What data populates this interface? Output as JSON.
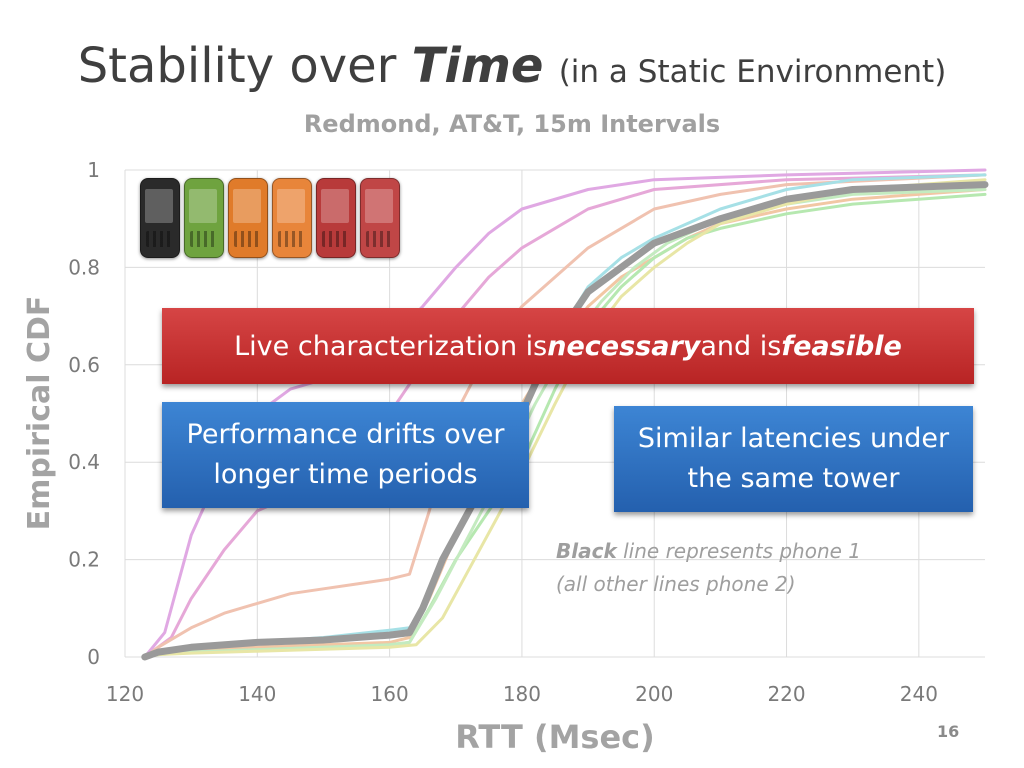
{
  "slide": {
    "title_main": "Stability over ",
    "title_emph": "Time",
    "title_paren": "(in a Static Environment)",
    "subtitle": "Redmond, AT&T, 15m Intervals",
    "banner": {
      "prefix": "Live characterization is ",
      "emph1": "necessary",
      "middle": " and is ",
      "emph2": "feasible"
    },
    "box_left": {
      "line1": "Performance drifts over",
      "line2": "longer time periods"
    },
    "box_right": {
      "line1": "Similar latencies under",
      "line2": "the same tower"
    },
    "note": {
      "bold": "Black",
      "line1_rest": " line represents phone 1",
      "line2": "(all other lines phone 2)"
    },
    "page_number": "16",
    "phone_colors": [
      "#2a2a2a",
      "#6fa33f",
      "#e07b2a",
      "#e8853a",
      "#b83a3a",
      "#c04646"
    ]
  },
  "chart_data": {
    "type": "line",
    "title": "",
    "xlabel": "RTT (Msec)",
    "ylabel": "Empirical CDF",
    "xlim": [
      120,
      250
    ],
    "ylim": [
      0,
      1
    ],
    "x_ticks": [
      120,
      140,
      160,
      180,
      200,
      220,
      240
    ],
    "y_ticks": [
      0,
      0.2,
      0.4,
      0.6,
      0.8,
      1
    ],
    "y_tick_labels": [
      "0",
      "0.2",
      "0.4",
      "0.6",
      "0.8",
      "1"
    ],
    "grid": true,
    "series": [
      {
        "color": "#9a9a9a",
        "width": 7,
        "points": [
          [
            123,
            0
          ],
          [
            125,
            0.01
          ],
          [
            130,
            0.02
          ],
          [
            140,
            0.03
          ],
          [
            150,
            0.035
          ],
          [
            160,
            0.045
          ],
          [
            163,
            0.05
          ],
          [
            165,
            0.1
          ],
          [
            168,
            0.2
          ],
          [
            172,
            0.3
          ],
          [
            176,
            0.4
          ],
          [
            180,
            0.5
          ],
          [
            185,
            0.65
          ],
          [
            190,
            0.75
          ],
          [
            195,
            0.8
          ],
          [
            200,
            0.85
          ],
          [
            210,
            0.9
          ],
          [
            220,
            0.94
          ],
          [
            230,
            0.96
          ],
          [
            250,
            0.97
          ]
        ]
      },
      {
        "color": "#e0a8e3",
        "width": 3,
        "points": [
          [
            123,
            0
          ],
          [
            126,
            0.05
          ],
          [
            128,
            0.15
          ],
          [
            130,
            0.25
          ],
          [
            135,
            0.4
          ],
          [
            140,
            0.5
          ],
          [
            145,
            0.55
          ],
          [
            150,
            0.57
          ],
          [
            155,
            0.6
          ],
          [
            160,
            0.65
          ],
          [
            165,
            0.72
          ],
          [
            170,
            0.8
          ],
          [
            175,
            0.87
          ],
          [
            180,
            0.92
          ],
          [
            190,
            0.96
          ],
          [
            200,
            0.98
          ],
          [
            220,
            0.99
          ],
          [
            250,
            1
          ]
        ]
      },
      {
        "color": "#e6a8d8",
        "width": 3,
        "points": [
          [
            123,
            0
          ],
          [
            127,
            0.04
          ],
          [
            130,
            0.12
          ],
          [
            135,
            0.22
          ],
          [
            140,
            0.3
          ],
          [
            145,
            0.33
          ],
          [
            150,
            0.38
          ],
          [
            155,
            0.43
          ],
          [
            160,
            0.5
          ],
          [
            165,
            0.6
          ],
          [
            170,
            0.7
          ],
          [
            175,
            0.78
          ],
          [
            180,
            0.84
          ],
          [
            185,
            0.88
          ],
          [
            190,
            0.92
          ],
          [
            200,
            0.96
          ],
          [
            220,
            0.98
          ],
          [
            250,
            0.99
          ]
        ]
      },
      {
        "color": "#f0c2b0",
        "width": 3,
        "points": [
          [
            123,
            0
          ],
          [
            125,
            0.02
          ],
          [
            130,
            0.06
          ],
          [
            135,
            0.09
          ],
          [
            140,
            0.11
          ],
          [
            145,
            0.13
          ],
          [
            150,
            0.14
          ],
          [
            155,
            0.15
          ],
          [
            160,
            0.16
          ],
          [
            163,
            0.17
          ],
          [
            166,
            0.3
          ],
          [
            170,
            0.5
          ],
          [
            175,
            0.63
          ],
          [
            180,
            0.72
          ],
          [
            185,
            0.78
          ],
          [
            190,
            0.84
          ],
          [
            195,
            0.88
          ],
          [
            200,
            0.92
          ],
          [
            210,
            0.95
          ],
          [
            220,
            0.97
          ],
          [
            250,
            0.99
          ]
        ]
      },
      {
        "color": "#f2c7a4",
        "width": 3,
        "points": [
          [
            123,
            0
          ],
          [
            125,
            0.01
          ],
          [
            130,
            0.015
          ],
          [
            140,
            0.02
          ],
          [
            150,
            0.025
          ],
          [
            160,
            0.03
          ],
          [
            163,
            0.04
          ],
          [
            166,
            0.12
          ],
          [
            170,
            0.25
          ],
          [
            175,
            0.38
          ],
          [
            180,
            0.52
          ],
          [
            185,
            0.63
          ],
          [
            190,
            0.72
          ],
          [
            195,
            0.78
          ],
          [
            200,
            0.82
          ],
          [
            205,
            0.86
          ],
          [
            210,
            0.89
          ],
          [
            220,
            0.92
          ],
          [
            230,
            0.94
          ],
          [
            250,
            0.96
          ]
        ]
      },
      {
        "color": "#a6e0e6",
        "width": 3,
        "points": [
          [
            123,
            0
          ],
          [
            125,
            0.01
          ],
          [
            130,
            0.02
          ],
          [
            140,
            0.03
          ],
          [
            150,
            0.04
          ],
          [
            160,
            0.055
          ],
          [
            163,
            0.06
          ],
          [
            165,
            0.1
          ],
          [
            168,
            0.2
          ],
          [
            172,
            0.3
          ],
          [
            176,
            0.4
          ],
          [
            180,
            0.5
          ],
          [
            185,
            0.65
          ],
          [
            190,
            0.76
          ],
          [
            195,
            0.82
          ],
          [
            200,
            0.86
          ],
          [
            210,
            0.92
          ],
          [
            220,
            0.96
          ],
          [
            230,
            0.98
          ],
          [
            250,
            0.99
          ]
        ]
      },
      {
        "color": "#b6e8b0",
        "width": 3,
        "points": [
          [
            123,
            0
          ],
          [
            125,
            0.005
          ],
          [
            130,
            0.01
          ],
          [
            140,
            0.015
          ],
          [
            150,
            0.02
          ],
          [
            160,
            0.025
          ],
          [
            163,
            0.03
          ],
          [
            166,
            0.1
          ],
          [
            170,
            0.2
          ],
          [
            175,
            0.3
          ],
          [
            180,
            0.4
          ],
          [
            185,
            0.55
          ],
          [
            190,
            0.68
          ],
          [
            195,
            0.76
          ],
          [
            200,
            0.82
          ],
          [
            205,
            0.86
          ],
          [
            210,
            0.88
          ],
          [
            220,
            0.91
          ],
          [
            230,
            0.93
          ],
          [
            240,
            0.94
          ],
          [
            250,
            0.95
          ]
        ]
      },
      {
        "color": "#c4ebc0",
        "width": 3,
        "points": [
          [
            123,
            0
          ],
          [
            125,
            0.005
          ],
          [
            130,
            0.01
          ],
          [
            140,
            0.015
          ],
          [
            150,
            0.02
          ],
          [
            160,
            0.025
          ],
          [
            163,
            0.03
          ],
          [
            167,
            0.12
          ],
          [
            172,
            0.25
          ],
          [
            177,
            0.38
          ],
          [
            182,
            0.52
          ],
          [
            187,
            0.64
          ],
          [
            192,
            0.73
          ],
          [
            197,
            0.8
          ],
          [
            202,
            0.85
          ],
          [
            210,
            0.9
          ],
          [
            220,
            0.93
          ],
          [
            230,
            0.95
          ],
          [
            250,
            0.96
          ]
        ]
      },
      {
        "color": "#e8e6a6",
        "width": 3,
        "points": [
          [
            123,
            0
          ],
          [
            125,
            0.005
          ],
          [
            130,
            0.008
          ],
          [
            140,
            0.012
          ],
          [
            150,
            0.016
          ],
          [
            160,
            0.02
          ],
          [
            164,
            0.025
          ],
          [
            168,
            0.08
          ],
          [
            172,
            0.18
          ],
          [
            176,
            0.28
          ],
          [
            180,
            0.38
          ],
          [
            185,
            0.52
          ],
          [
            190,
            0.65
          ],
          [
            195,
            0.74
          ],
          [
            200,
            0.8
          ],
          [
            205,
            0.85
          ],
          [
            210,
            0.89
          ],
          [
            220,
            0.93
          ],
          [
            230,
            0.96
          ],
          [
            250,
            0.98
          ]
        ]
      }
    ]
  }
}
